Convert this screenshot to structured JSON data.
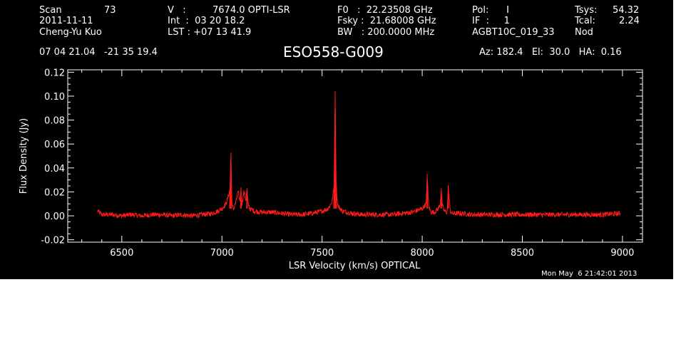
{
  "header": {
    "col1": {
      "scan_label": "Scan",
      "scan_value": "73",
      "date": "2011-11-11",
      "observer": "Cheng-Yu Kuo"
    },
    "col2": {
      "v_label": "V   :",
      "v_value": "7674.0 OPTI-LSR",
      "int_line": "Int  :  03 20 18.2",
      "lst_line": "LST : +07 13 41.9"
    },
    "col3": {
      "f0_line": "F0   :  22.23508 GHz",
      "fsky_line": "Fsky :  21.68008 GHz",
      "bw_line": "BW   : 200.0000 MHz"
    },
    "col4": {
      "pol_line": "Pol:      I",
      "if_line": "IF  :     1",
      "proc": "AGBT10C_019_33"
    },
    "col5": {
      "tsys_label": "Tsys:",
      "tsys_value": "54.32",
      "tcal_label": "Tcal:",
      "tcal_value": "2.24",
      "mode": "Nod"
    },
    "coords": "07 04 21.04   -21 35 19.4",
    "object": "ESO558-G009",
    "pointing": "Az: 182.4   El:  30.0   HA:  0.16"
  },
  "timestamp": "Mon May  6 21:42:01 2013",
  "colors": {
    "background": "#000000",
    "axes": "#ffffff",
    "trace": "#ff1a1a"
  },
  "chart_data": {
    "type": "line",
    "title": "ESO558-G009",
    "xlabel": "LSR Velocity (km/s) OPTICAL",
    "ylabel": "Flux Density (Jy)",
    "xlim": [
      6230,
      9100
    ],
    "ylim": [
      -0.022,
      0.122
    ],
    "x_ticks": [
      6500,
      7000,
      7500,
      8000,
      8500,
      9000
    ],
    "y_ticks": [
      -0.02,
      0.0,
      0.02,
      0.04,
      0.06,
      0.08,
      0.1,
      0.12
    ],
    "y_tick_labels": [
      "-0.02",
      "0.00",
      "0.02",
      "0.04",
      "0.06",
      "0.08",
      "0.10",
      "0.12"
    ],
    "grid": false,
    "series": [
      {
        "x": [
          6380,
          6400,
          6450,
          6500,
          6550,
          6600,
          6650,
          6700,
          6750,
          6800,
          6850,
          6900,
          6950,
          6980,
          7000,
          7020,
          7030,
          7040,
          7045,
          7050,
          7060,
          7070,
          7080,
          7090,
          7095,
          7100,
          7110,
          7120,
          7125,
          7130,
          7140,
          7160,
          7200,
          7250,
          7300,
          7350,
          7400,
          7450,
          7500,
          7530,
          7550,
          7560,
          7565,
          7570,
          7575,
          7580,
          7600,
          7650,
          7700,
          7750,
          7800,
          7850,
          7900,
          7950,
          8000,
          8020,
          8025,
          8030,
          8035,
          8045,
          8060,
          8080,
          8090,
          8095,
          8100,
          8110,
          8125,
          8130,
          8140,
          8150,
          8200,
          8250,
          8300,
          8400,
          8500,
          8600,
          8700,
          8800,
          8900,
          8990
        ],
        "y": [
          0.004,
          0.001,
          0.001,
          0.0,
          0.001,
          0.0,
          0.001,
          0.001,
          0.0,
          0.001,
          0.0,
          0.001,
          0.002,
          0.004,
          0.006,
          0.01,
          0.015,
          0.022,
          0.053,
          0.008,
          0.006,
          0.012,
          0.02,
          0.012,
          0.023,
          0.01,
          0.02,
          0.013,
          0.023,
          0.01,
          0.006,
          0.004,
          0.003,
          0.003,
          0.002,
          0.001,
          0.001,
          0.002,
          0.004,
          0.006,
          0.012,
          0.025,
          0.104,
          0.03,
          0.014,
          0.008,
          0.004,
          0.002,
          0.001,
          0.001,
          0.001,
          0.001,
          0.002,
          0.003,
          0.006,
          0.01,
          0.035,
          0.014,
          0.006,
          0.003,
          0.003,
          0.006,
          0.01,
          0.023,
          0.009,
          0.004,
          0.003,
          0.025,
          0.004,
          0.002,
          0.002,
          0.001,
          0.001,
          0.001,
          0.001,
          0.001,
          0.001,
          0.001,
          0.001,
          0.002
        ]
      }
    ]
  }
}
